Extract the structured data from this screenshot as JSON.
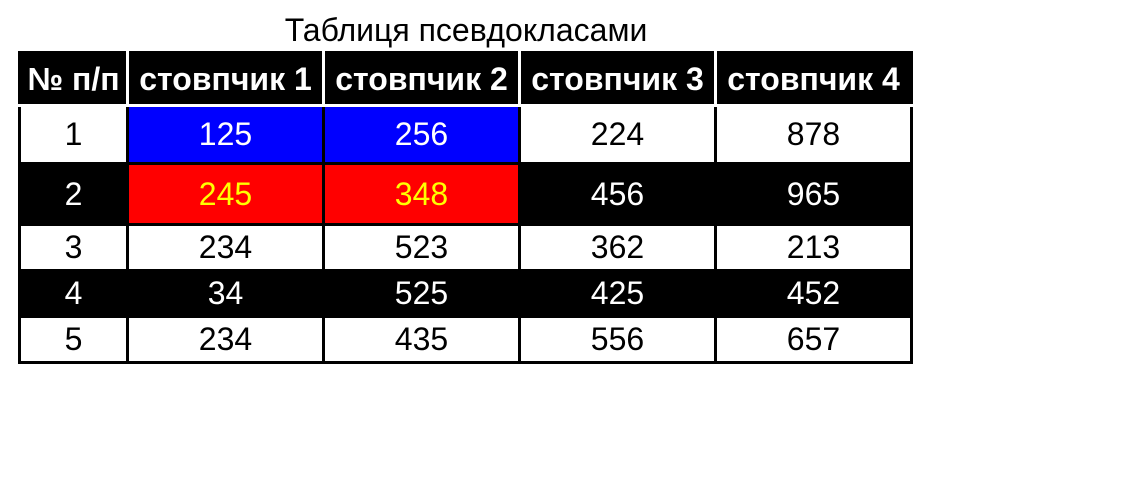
{
  "title": "Таблиця псевдокласами",
  "table": {
    "headers": [
      "№ п/п",
      "стовпчик 1",
      "стовпчик 2",
      "стовпчик 3",
      "стовпчик 4"
    ],
    "rows": [
      [
        "1",
        "125",
        "256",
        "224",
        "878"
      ],
      [
        "2",
        "245",
        "348",
        "456",
        "965"
      ],
      [
        "3",
        "234",
        "523",
        "362",
        "213"
      ],
      [
        "4",
        "34",
        "525",
        "425",
        "452"
      ],
      [
        "5",
        "234",
        "435",
        "556",
        "657"
      ]
    ]
  },
  "colors": {
    "header_bg": "#000000",
    "header_text": "#ffffff",
    "even_row_bg": "#000000",
    "even_row_text": "#ffffff",
    "odd_row_bg": "#ffffff",
    "odd_row_text": "#000000",
    "highlight_row1": "#0000ff",
    "highlight_row1_text": "#ffffff",
    "highlight_row2": "#ff0000",
    "highlight_row2_text": "#ffff00"
  }
}
